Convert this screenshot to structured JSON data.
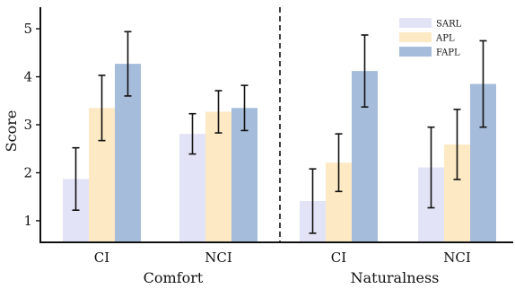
{
  "chart_data": {
    "type": "bar",
    "ylabel": "Score",
    "ylim": [
      0.55,
      5.45
    ],
    "yticks": [
      1,
      2,
      3,
      4,
      5
    ],
    "groups": [
      {
        "name": "Comfort",
        "categories": [
          "CI",
          "NCI"
        ],
        "series": [
          {
            "name": "SARL",
            "values": [
              1.87,
              2.81
            ],
            "errors": [
              0.65,
              0.42
            ]
          },
          {
            "name": "APL",
            "values": [
              3.35,
              3.27
            ],
            "errors": [
              0.68,
              0.44
            ]
          },
          {
            "name": "FAPL",
            "values": [
              4.27,
              3.35
            ],
            "errors": [
              0.67,
              0.47
            ]
          }
        ]
      },
      {
        "name": "Naturalness",
        "categories": [
          "CI",
          "NCI"
        ],
        "series": [
          {
            "name": "SARL",
            "values": [
              1.41,
              2.11
            ],
            "errors": [
              0.67,
              0.84
            ]
          },
          {
            "name": "APL",
            "values": [
              2.21,
              2.59
            ],
            "errors": [
              0.6,
              0.73
            ]
          },
          {
            "name": "FAPL",
            "values": [
              4.12,
              3.85
            ],
            "errors": [
              0.75,
              0.9
            ]
          }
        ]
      }
    ],
    "legend": {
      "placement": "top-right",
      "entries": [
        "SARL",
        "APL",
        "FAPL"
      ]
    },
    "colors": {
      "SARL": "#e3e3f7",
      "APL": "#fde9c4",
      "FAPL": "#a6bcdb"
    },
    "grid": false,
    "divider": "dashed"
  }
}
